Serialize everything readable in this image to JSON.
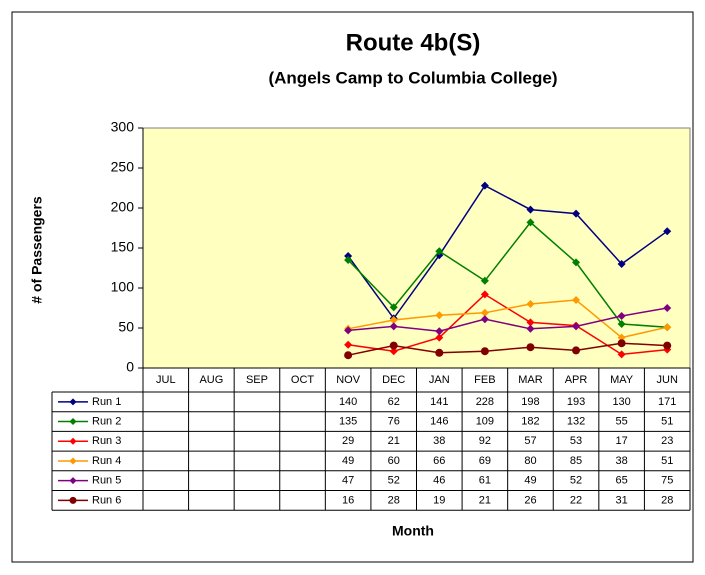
{
  "chart_data": {
    "type": "line",
    "title": "Route 4b(S)",
    "subtitle": "(Angels Camp to Columbia College)",
    "y_label": "# of Passengers",
    "x_label": "Month",
    "categories": [
      "JUL",
      "AUG",
      "SEP",
      "OCT",
      "NOV",
      "DEC",
      "JAN",
      "FEB",
      "MAR",
      "APR",
      "MAY",
      "JUN"
    ],
    "series": [
      {
        "name": "Run 1",
        "color": "#000080",
        "marker": "diamond",
        "values": [
          null,
          null,
          null,
          null,
          140,
          62,
          141,
          228,
          198,
          193,
          130,
          171
        ]
      },
      {
        "name": "Run 2",
        "color": "#008000",
        "marker": "diamond",
        "values": [
          null,
          null,
          null,
          null,
          135,
          76,
          146,
          109,
          182,
          132,
          55,
          51
        ]
      },
      {
        "name": "Run 3",
        "color": "#ff0000",
        "marker": "diamond",
        "values": [
          null,
          null,
          null,
          null,
          29,
          21,
          38,
          92,
          57,
          53,
          17,
          23
        ]
      },
      {
        "name": "Run 4",
        "color": "#ff9900",
        "marker": "diamond",
        "values": [
          null,
          null,
          null,
          null,
          49,
          60,
          66,
          69,
          80,
          85,
          38,
          51
        ]
      },
      {
        "name": "Run 5",
        "color": "#800080",
        "marker": "diamond",
        "values": [
          null,
          null,
          null,
          null,
          47,
          52,
          46,
          61,
          49,
          52,
          65,
          75
        ]
      },
      {
        "name": "Run 6",
        "color": "#800000",
        "marker": "circle",
        "values": [
          null,
          null,
          null,
          null,
          16,
          28,
          19,
          21,
          26,
          22,
          31,
          28
        ]
      }
    ],
    "ylim": [
      0,
      300
    ],
    "yticks": [
      0,
      50,
      100,
      150,
      200,
      250,
      300
    ],
    "grid": false,
    "plot_background": "#ffffc0"
  }
}
